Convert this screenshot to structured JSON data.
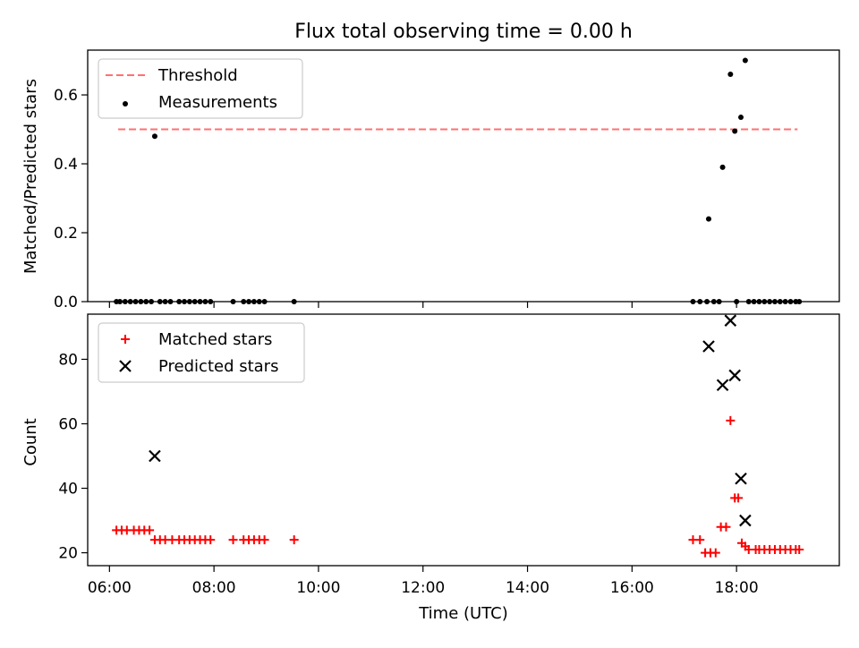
{
  "chart_data": [
    {
      "type": "scatter",
      "title": "Flux total observing time = 0.00 h",
      "xlabel": "",
      "ylabel": "Matched/Predicted stars",
      "x_is_time": true,
      "ylim": [
        0,
        0.73
      ],
      "yticks": [
        0.0,
        0.2,
        0.4,
        0.6
      ],
      "ytick_labels": [
        "0.0",
        "0.2",
        "0.4",
        "0.6"
      ],
      "legend": {
        "placement": "upper-left"
      },
      "threshold": {
        "name": "Threshold",
        "value": 0.5,
        "x_range": [
          "06:10",
          "19:10"
        ],
        "color": "#ff7070",
        "style": "dashed"
      },
      "series": [
        {
          "name": "Measurements",
          "marker": "dot",
          "color": "#000000",
          "points": [
            [
              "06:08",
              0
            ],
            [
              "06:12",
              0
            ],
            [
              "06:18",
              0
            ],
            [
              "06:24",
              0
            ],
            [
              "06:30",
              0
            ],
            [
              "06:36",
              0
            ],
            [
              "06:42",
              0
            ],
            [
              "06:48",
              0
            ],
            [
              "06:52",
              0.48
            ],
            [
              "06:58",
              0
            ],
            [
              "07:04",
              0
            ],
            [
              "07:10",
              0
            ],
            [
              "07:20",
              0
            ],
            [
              "07:26",
              0
            ],
            [
              "07:32",
              0
            ],
            [
              "07:38",
              0
            ],
            [
              "07:44",
              0
            ],
            [
              "07:50",
              0
            ],
            [
              "07:56",
              0
            ],
            [
              "08:22",
              0
            ],
            [
              "08:34",
              0
            ],
            [
              "08:40",
              0
            ],
            [
              "08:46",
              0
            ],
            [
              "08:52",
              0
            ],
            [
              "08:58",
              0
            ],
            [
              "09:32",
              0
            ],
            [
              "17:10",
              0
            ],
            [
              "17:18",
              0
            ],
            [
              "17:26",
              0
            ],
            [
              "17:28",
              0.24
            ],
            [
              "17:34",
              0
            ],
            [
              "17:40",
              0
            ],
            [
              "17:44",
              0.39
            ],
            [
              "17:53",
              0.66
            ],
            [
              "17:58",
              0.495
            ],
            [
              "18:00",
              0
            ],
            [
              "18:05",
              0.535
            ],
            [
              "18:10",
              0.7
            ],
            [
              "18:14",
              0
            ],
            [
              "18:20",
              0
            ],
            [
              "18:26",
              0
            ],
            [
              "18:32",
              0
            ],
            [
              "18:38",
              0
            ],
            [
              "18:44",
              0
            ],
            [
              "18:50",
              0
            ],
            [
              "18:56",
              0
            ],
            [
              "19:02",
              0
            ],
            [
              "19:08",
              0
            ],
            [
              "19:12",
              0
            ]
          ]
        }
      ]
    },
    {
      "type": "scatter",
      "title": "",
      "xlabel": "Time (UTC)",
      "ylabel": "Count",
      "x_is_time": true,
      "xlim": [
        "05:35",
        "19:58"
      ],
      "xticks": [
        "06:00",
        "08:00",
        "10:00",
        "12:00",
        "14:00",
        "16:00",
        "18:00"
      ],
      "ylim": [
        16,
        94
      ],
      "yticks": [
        20,
        40,
        60,
        80
      ],
      "ytick_labels": [
        "20",
        "40",
        "60",
        "80"
      ],
      "legend": {
        "placement": "upper-left"
      },
      "series": [
        {
          "name": "Matched stars",
          "marker": "plus",
          "color": "#ff0000",
          "points": [
            [
              "06:08",
              27
            ],
            [
              "06:14",
              27
            ],
            [
              "06:20",
              27
            ],
            [
              "06:28",
              27
            ],
            [
              "06:34",
              27
            ],
            [
              "06:40",
              27
            ],
            [
              "06:46",
              27
            ],
            [
              "06:52",
              24
            ],
            [
              "06:58",
              24
            ],
            [
              "07:04",
              24
            ],
            [
              "07:12",
              24
            ],
            [
              "07:20",
              24
            ],
            [
              "07:26",
              24
            ],
            [
              "07:32",
              24
            ],
            [
              "07:38",
              24
            ],
            [
              "07:44",
              24
            ],
            [
              "07:50",
              24
            ],
            [
              "07:56",
              24
            ],
            [
              "08:22",
              24
            ],
            [
              "08:34",
              24
            ],
            [
              "08:40",
              24
            ],
            [
              "08:46",
              24
            ],
            [
              "08:52",
              24
            ],
            [
              "08:58",
              24
            ],
            [
              "09:32",
              24
            ],
            [
              "17:10",
              24
            ],
            [
              "17:18",
              24
            ],
            [
              "17:24",
              20
            ],
            [
              "17:30",
              20
            ],
            [
              "17:36",
              20
            ],
            [
              "17:42",
              28
            ],
            [
              "17:48",
              28
            ],
            [
              "17:53",
              61
            ],
            [
              "17:58",
              37
            ],
            [
              "18:02",
              37
            ],
            [
              "18:06",
              23
            ],
            [
              "18:10",
              22
            ],
            [
              "18:14",
              21
            ],
            [
              "18:22",
              21
            ],
            [
              "18:26",
              21
            ],
            [
              "18:32",
              21
            ],
            [
              "18:38",
              21
            ],
            [
              "18:44",
              21
            ],
            [
              "18:50",
              21
            ],
            [
              "18:56",
              21
            ],
            [
              "19:02",
              21
            ],
            [
              "19:08",
              21
            ],
            [
              "19:12",
              21
            ]
          ]
        },
        {
          "name": "Predicted stars",
          "marker": "x",
          "color": "#000000",
          "points": [
            [
              "06:52",
              50
            ],
            [
              "17:28",
              84
            ],
            [
              "17:44",
              72
            ],
            [
              "17:53",
              92
            ],
            [
              "17:58",
              75
            ],
            [
              "18:05",
              43
            ],
            [
              "18:10",
              30
            ]
          ]
        }
      ]
    }
  ]
}
